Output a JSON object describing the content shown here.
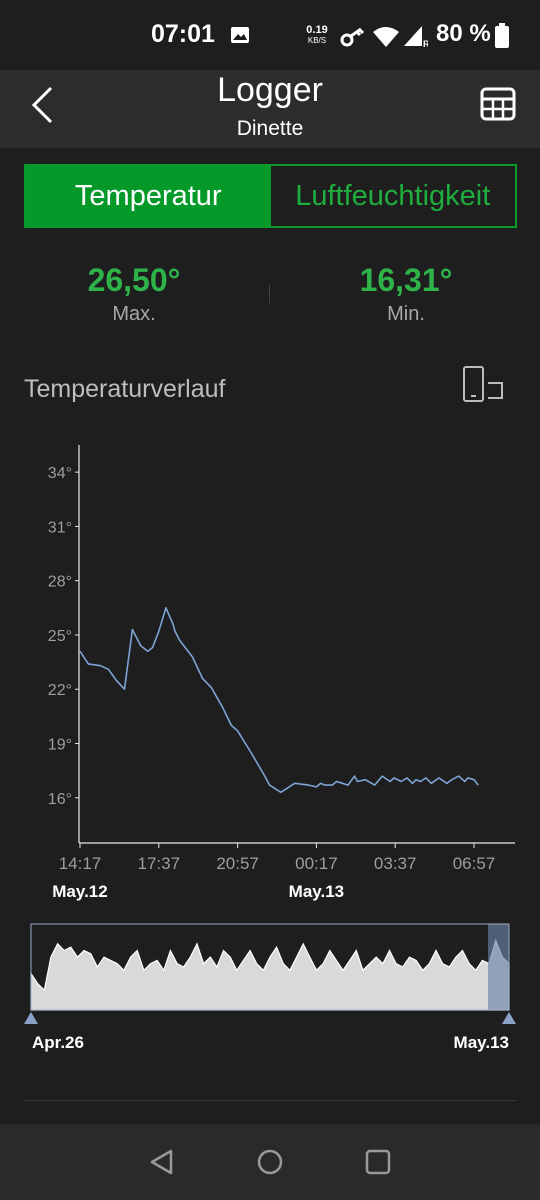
{
  "status_bar": {
    "time": "07:01",
    "net_speed": "0.19",
    "net_unit": "KB/S",
    "battery": "80 %",
    "icons": [
      "image-icon",
      "key-icon",
      "wifi-icon",
      "signal-icon",
      "battery-icon"
    ]
  },
  "app_bar": {
    "title": "Logger",
    "subtitle": "Dinette",
    "back_icon": "chevron-left-icon",
    "table_icon": "table-grid-icon"
  },
  "tabs": [
    {
      "label": "Temperatur",
      "active": true
    },
    {
      "label": "Luftfeuchtigkeit",
      "active": false
    }
  ],
  "stats": {
    "max_value": "26,50°",
    "max_label": "Max.",
    "min_value": "16,31°",
    "min_label": "Min."
  },
  "section_title": "Temperaturverlauf",
  "colors": {
    "accent_green": "#05992a",
    "accent_green_text": "#2eb34a",
    "line_blue": "#7ea4d6",
    "background": "#1e1e1e",
    "app_bar": "#2c2c2c"
  },
  "chart_data": {
    "type": "line",
    "title": "",
    "xlabel": "",
    "ylabel": "",
    "ylim": [
      13.5,
      35.5
    ],
    "yticks": [
      "34°",
      "31°",
      "28°",
      "25°",
      "22°",
      "19°",
      "16°"
    ],
    "xticks": [
      "14:17",
      "17:37",
      "20:57",
      "00:17",
      "03:37",
      "06:57"
    ],
    "date_labels": [
      {
        "label": "May.12",
        "at": "14:17"
      },
      {
        "label": "May.13",
        "at": "00:17"
      }
    ],
    "x_start": "May.12 14:17",
    "x_end": "May.13 06:57",
    "series": [
      {
        "x": [
          "14:17",
          "14:38",
          "15:09",
          "15:29",
          "15:49",
          "16:10",
          "16:30",
          "16:51",
          "17:09",
          "17:21",
          "17:37",
          "17:55",
          "18:13",
          "18:18",
          "18:30",
          "19:02",
          "19:28",
          "19:50",
          "20:19",
          "20:41",
          "20:57",
          "21:31",
          "22:06",
          "22:18",
          "22:47",
          "23:22",
          "23:57",
          "00:17",
          "00:28",
          "00:38",
          "00:57",
          "01:08",
          "01:23",
          "01:37",
          "01:54",
          "02:01",
          "02:21",
          "02:45",
          "03:04",
          "03:24",
          "03:34",
          "03:52",
          "04:07",
          "04:21",
          "04:30",
          "04:41",
          "04:55",
          "05:09",
          "05:28",
          "05:48",
          "06:01",
          "06:18",
          "06:34",
          "06:41",
          "06:57",
          "07:08"
        ],
        "y": [
          24.1,
          23.4,
          23.3,
          23.1,
          22.5,
          22.0,
          25.3,
          24.4,
          24.1,
          24.3,
          25.2,
          26.5,
          25.6,
          25.2,
          24.7,
          23.8,
          22.6,
          22.1,
          21.0,
          20.0,
          19.7,
          18.5,
          17.2,
          16.7,
          16.3,
          16.8,
          16.7,
          16.6,
          16.8,
          16.7,
          16.7,
          16.9,
          16.8,
          16.7,
          17.2,
          16.9,
          17.0,
          16.7,
          17.2,
          16.9,
          17.1,
          16.9,
          17.1,
          16.8,
          17.0,
          16.9,
          17.1,
          16.8,
          17.1,
          16.8,
          17.0,
          17.2,
          16.9,
          17.1,
          17.0,
          16.7
        ]
      }
    ]
  },
  "navigator": {
    "start_label": "Apr.26",
    "end_label": "May.13",
    "profile": [
      20.5,
      19,
      18,
      23,
      25,
      24,
      24.5,
      23,
      24,
      23.5,
      21.5,
      23,
      22.5,
      22,
      21,
      23,
      24,
      21,
      22,
      22.5,
      21,
      24,
      22,
      21.5,
      23,
      25,
      22,
      23,
      21.5,
      24,
      23,
      21,
      22.5,
      24,
      22,
      21,
      23,
      24.5,
      22,
      21,
      23,
      25,
      23,
      21,
      22,
      24,
      22.5,
      21,
      22.5,
      24,
      21,
      22,
      23,
      22,
      24,
      22,
      21.5,
      23,
      22.5,
      21,
      22,
      24,
      22,
      21.5,
      23,
      24,
      22,
      21,
      22.5,
      22,
      25.5,
      23,
      22
    ]
  },
  "nav_bar": [
    "back-triangle-icon",
    "home-circle-icon",
    "recents-square-icon"
  ]
}
